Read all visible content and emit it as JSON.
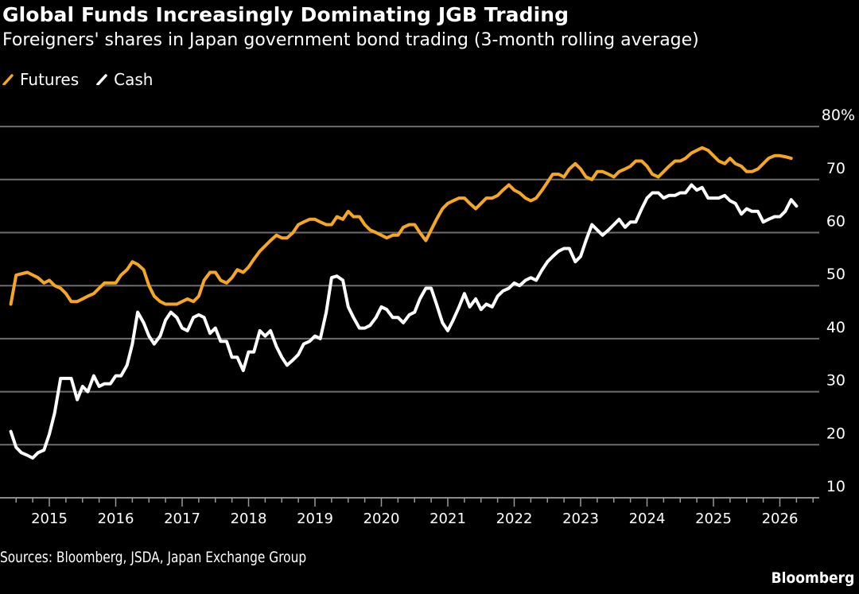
{
  "chart_data": {
    "type": "line",
    "title": "Global Funds Increasingly Dominating JGB Trading",
    "subtitle": "Foreigners' shares in Japan government bond trading (3-month rolling average)",
    "xlabel": "",
    "ylabel": "",
    "xlim": [
      2014.35,
      2026.75
    ],
    "ylim": [
      10,
      80
    ],
    "y_ticks": [
      "10",
      "20",
      "30",
      "40",
      "50",
      "60",
      "70",
      "80%"
    ],
    "y_tick_values": [
      10,
      20,
      30,
      40,
      50,
      60,
      70,
      80
    ],
    "x_ticks": [
      "2015",
      "2016",
      "2017",
      "2018",
      "2019",
      "2020",
      "2021",
      "2022",
      "2023",
      "2024",
      "2025",
      "2026"
    ],
    "x_tick_values": [
      2015,
      2016,
      2017,
      2018,
      2019,
      2020,
      2021,
      2022,
      2023,
      2024,
      2025,
      2026
    ],
    "grid": true,
    "y_axis_side": "right",
    "legend_placement": "top-left",
    "series": [
      {
        "name": "Futures",
        "color": "#f5a623",
        "points": [
          [
            2014.42,
            46.5
          ],
          [
            2014.5,
            52
          ],
          [
            2014.67,
            52.5
          ],
          [
            2014.83,
            51.5
          ],
          [
            2014.92,
            50.5
          ],
          [
            2015.0,
            51
          ],
          [
            2015.08,
            50
          ],
          [
            2015.17,
            49.5
          ],
          [
            2015.25,
            48.5
          ],
          [
            2015.33,
            47
          ],
          [
            2015.42,
            47
          ],
          [
            2015.5,
            47.5
          ],
          [
            2015.58,
            48
          ],
          [
            2015.67,
            48.5
          ],
          [
            2015.75,
            49.5
          ],
          [
            2015.83,
            50.5
          ],
          [
            2015.92,
            50.5
          ],
          [
            2016.0,
            50.5
          ],
          [
            2016.08,
            52
          ],
          [
            2016.17,
            53
          ],
          [
            2016.25,
            54.5
          ],
          [
            2016.33,
            54
          ],
          [
            2016.42,
            53
          ],
          [
            2016.5,
            50
          ],
          [
            2016.58,
            48
          ],
          [
            2016.67,
            47
          ],
          [
            2016.75,
            46.5
          ],
          [
            2016.83,
            46.5
          ],
          [
            2016.92,
            46.5
          ],
          [
            2017.0,
            47
          ],
          [
            2017.08,
            47.5
          ],
          [
            2017.17,
            47
          ],
          [
            2017.25,
            48
          ],
          [
            2017.33,
            51
          ],
          [
            2017.42,
            52.5
          ],
          [
            2017.5,
            52.5
          ],
          [
            2017.58,
            51
          ],
          [
            2017.67,
            50.5
          ],
          [
            2017.75,
            51.5
          ],
          [
            2017.83,
            53
          ],
          [
            2017.92,
            52.5
          ],
          [
            2018.0,
            53.5
          ],
          [
            2018.08,
            55
          ],
          [
            2018.17,
            56.5
          ],
          [
            2018.25,
            57.5
          ],
          [
            2018.33,
            58.5
          ],
          [
            2018.42,
            59.5
          ],
          [
            2018.5,
            59
          ],
          [
            2018.58,
            59
          ],
          [
            2018.67,
            60
          ],
          [
            2018.75,
            61.5
          ],
          [
            2018.83,
            62
          ],
          [
            2018.92,
            62.5
          ],
          [
            2019.0,
            62.5
          ],
          [
            2019.08,
            62
          ],
          [
            2019.17,
            61.5
          ],
          [
            2019.25,
            61.5
          ],
          [
            2019.33,
            63
          ],
          [
            2019.42,
            62.5
          ],
          [
            2019.5,
            64
          ],
          [
            2019.58,
            63
          ],
          [
            2019.67,
            63
          ],
          [
            2019.75,
            61.5
          ],
          [
            2019.83,
            60.5
          ],
          [
            2019.92,
            60
          ],
          [
            2020.0,
            59.5
          ],
          [
            2020.08,
            59
          ],
          [
            2020.17,
            59.5
          ],
          [
            2020.25,
            59.5
          ],
          [
            2020.33,
            61
          ],
          [
            2020.42,
            61.5
          ],
          [
            2020.5,
            61.5
          ],
          [
            2020.58,
            60
          ],
          [
            2020.67,
            58.5
          ],
          [
            2020.75,
            60.5
          ],
          [
            2020.83,
            62.5
          ],
          [
            2020.92,
            64.5
          ],
          [
            2021.0,
            65.5
          ],
          [
            2021.08,
            66
          ],
          [
            2021.17,
            66.5
          ],
          [
            2021.25,
            66.5
          ],
          [
            2021.33,
            65.5
          ],
          [
            2021.42,
            64.5
          ],
          [
            2021.5,
            65.5
          ],
          [
            2021.58,
            66.5
          ],
          [
            2021.67,
            66.5
          ],
          [
            2021.75,
            67
          ],
          [
            2021.83,
            68
          ],
          [
            2021.92,
            69
          ],
          [
            2022.0,
            68
          ],
          [
            2022.08,
            67.5
          ],
          [
            2022.17,
            66.5
          ],
          [
            2022.25,
            66
          ],
          [
            2022.33,
            66.5
          ],
          [
            2022.42,
            68
          ],
          [
            2022.5,
            69.5
          ],
          [
            2022.58,
            71
          ],
          [
            2022.67,
            71
          ],
          [
            2022.75,
            70.5
          ],
          [
            2022.83,
            72
          ],
          [
            2022.92,
            73
          ],
          [
            2023.0,
            72
          ],
          [
            2023.08,
            70.5
          ],
          [
            2023.17,
            70
          ],
          [
            2023.25,
            71.5
          ],
          [
            2023.33,
            71.5
          ],
          [
            2023.42,
            71
          ],
          [
            2023.5,
            70.5
          ],
          [
            2023.58,
            71.5
          ],
          [
            2023.67,
            72
          ],
          [
            2023.75,
            72.5
          ],
          [
            2023.83,
            73.5
          ],
          [
            2023.92,
            73.5
          ],
          [
            2024.0,
            72.5
          ],
          [
            2024.08,
            71
          ],
          [
            2024.17,
            70.5
          ],
          [
            2024.25,
            71.5
          ],
          [
            2024.33,
            72.5
          ],
          [
            2024.42,
            73.5
          ],
          [
            2024.5,
            73.5
          ],
          [
            2024.58,
            74
          ],
          [
            2024.67,
            75
          ],
          [
            2024.75,
            75.5
          ],
          [
            2024.83,
            76
          ],
          [
            2024.92,
            75.5
          ],
          [
            2025.0,
            74.5
          ],
          [
            2025.08,
            73.5
          ],
          [
            2025.17,
            73
          ],
          [
            2025.25,
            74
          ],
          [
            2025.33,
            73
          ],
          [
            2025.42,
            72.5
          ],
          [
            2025.5,
            71.5
          ],
          [
            2025.58,
            71.5
          ],
          [
            2025.67,
            72
          ],
          [
            2025.75,
            73
          ],
          [
            2025.83,
            74
          ],
          [
            2025.92,
            74.5
          ],
          [
            2026.0,
            74.5
          ],
          [
            2026.08,
            74.3
          ],
          [
            2026.17,
            74
          ]
        ]
      },
      {
        "name": "Cash",
        "color": "#ffffff",
        "points": [
          [
            2014.42,
            22.5
          ],
          [
            2014.5,
            19.5
          ],
          [
            2014.58,
            18.5
          ],
          [
            2014.67,
            18
          ],
          [
            2014.75,
            17.5
          ],
          [
            2014.83,
            18.5
          ],
          [
            2014.92,
            19
          ],
          [
            2015.0,
            22
          ],
          [
            2015.08,
            26
          ],
          [
            2015.17,
            32.5
          ],
          [
            2015.25,
            32.5
          ],
          [
            2015.33,
            32.5
          ],
          [
            2015.42,
            28.5
          ],
          [
            2015.5,
            31
          ],
          [
            2015.58,
            30
          ],
          [
            2015.67,
            33
          ],
          [
            2015.75,
            31
          ],
          [
            2015.83,
            31.5
          ],
          [
            2015.92,
            31.5
          ],
          [
            2016.0,
            33
          ],
          [
            2016.08,
            33
          ],
          [
            2016.17,
            35
          ],
          [
            2016.25,
            39
          ],
          [
            2016.33,
            45
          ],
          [
            2016.42,
            43
          ],
          [
            2016.5,
            40.5
          ],
          [
            2016.58,
            39
          ],
          [
            2016.67,
            40.5
          ],
          [
            2016.75,
            43.5
          ],
          [
            2016.83,
            45
          ],
          [
            2016.92,
            44
          ],
          [
            2017.0,
            42
          ],
          [
            2017.08,
            41.5
          ],
          [
            2017.17,
            44
          ],
          [
            2017.25,
            44.5
          ],
          [
            2017.33,
            44
          ],
          [
            2017.42,
            41
          ],
          [
            2017.5,
            42
          ],
          [
            2017.58,
            39.5
          ],
          [
            2017.67,
            39.5
          ],
          [
            2017.75,
            36.5
          ],
          [
            2017.83,
            36.5
          ],
          [
            2017.92,
            34
          ],
          [
            2018.0,
            37.5
          ],
          [
            2018.08,
            37.5
          ],
          [
            2018.17,
            41.5
          ],
          [
            2018.25,
            40.5
          ],
          [
            2018.33,
            41.5
          ],
          [
            2018.42,
            38.5
          ],
          [
            2018.5,
            36.5
          ],
          [
            2018.58,
            35
          ],
          [
            2018.67,
            36
          ],
          [
            2018.75,
            37
          ],
          [
            2018.83,
            39
          ],
          [
            2018.92,
            39.5
          ],
          [
            2019.0,
            40.5
          ],
          [
            2019.08,
            40
          ],
          [
            2019.17,
            45
          ],
          [
            2019.25,
            51.5
          ],
          [
            2019.33,
            51.8
          ],
          [
            2019.42,
            51
          ],
          [
            2019.5,
            46
          ],
          [
            2019.58,
            44
          ],
          [
            2019.67,
            42
          ],
          [
            2019.75,
            42
          ],
          [
            2019.83,
            42.5
          ],
          [
            2019.92,
            44
          ],
          [
            2020.0,
            46
          ],
          [
            2020.08,
            45.5
          ],
          [
            2020.17,
            44
          ],
          [
            2020.25,
            44
          ],
          [
            2020.33,
            43
          ],
          [
            2020.42,
            44.5
          ],
          [
            2020.5,
            45
          ],
          [
            2020.58,
            47.5
          ],
          [
            2020.67,
            49.5
          ],
          [
            2020.75,
            49.5
          ],
          [
            2020.83,
            46.5
          ],
          [
            2020.92,
            43
          ],
          [
            2021.0,
            41.5
          ],
          [
            2021.08,
            43.5
          ],
          [
            2021.17,
            46
          ],
          [
            2021.25,
            48.5
          ],
          [
            2021.33,
            46
          ],
          [
            2021.42,
            47.5
          ],
          [
            2021.5,
            45.5
          ],
          [
            2021.58,
            46.5
          ],
          [
            2021.67,
            46
          ],
          [
            2021.75,
            48
          ],
          [
            2021.83,
            49
          ],
          [
            2021.92,
            49.5
          ],
          [
            2022.0,
            50.5
          ],
          [
            2022.08,
            50
          ],
          [
            2022.17,
            51
          ],
          [
            2022.25,
            51.5
          ],
          [
            2022.33,
            51
          ],
          [
            2022.42,
            53
          ],
          [
            2022.5,
            54.5
          ],
          [
            2022.58,
            55.5
          ],
          [
            2022.67,
            56.5
          ],
          [
            2022.75,
            57
          ],
          [
            2022.83,
            57
          ],
          [
            2022.92,
            54.5
          ],
          [
            2023.0,
            55.5
          ],
          [
            2023.08,
            58.5
          ],
          [
            2023.17,
            61.5
          ],
          [
            2023.25,
            60.5
          ],
          [
            2023.33,
            59.5
          ],
          [
            2023.42,
            60.5
          ],
          [
            2023.5,
            61.5
          ],
          [
            2023.58,
            62.5
          ],
          [
            2023.67,
            61
          ],
          [
            2023.75,
            62
          ],
          [
            2023.83,
            62
          ],
          [
            2023.92,
            64.5
          ],
          [
            2024.0,
            66.5
          ],
          [
            2024.08,
            67.5
          ],
          [
            2024.17,
            67.5
          ],
          [
            2024.25,
            66.5
          ],
          [
            2024.33,
            67
          ],
          [
            2024.42,
            67
          ],
          [
            2024.5,
            67.5
          ],
          [
            2024.58,
            67.5
          ],
          [
            2024.67,
            69
          ],
          [
            2024.75,
            68
          ],
          [
            2024.83,
            68.5
          ],
          [
            2024.92,
            66.5
          ],
          [
            2025.0,
            66.5
          ],
          [
            2025.08,
            66.5
          ],
          [
            2025.17,
            67
          ],
          [
            2025.25,
            66
          ],
          [
            2025.33,
            65.5
          ],
          [
            2025.42,
            63.5
          ],
          [
            2025.5,
            64.5
          ],
          [
            2025.58,
            64
          ],
          [
            2025.67,
            64
          ],
          [
            2025.75,
            62
          ],
          [
            2025.83,
            62.5
          ],
          [
            2025.92,
            63
          ],
          [
            2026.0,
            63
          ],
          [
            2026.08,
            64
          ],
          [
            2026.17,
            66.2
          ],
          [
            2026.25,
            65
          ]
        ]
      }
    ]
  },
  "header": {
    "title": "Global Funds Increasingly Dominating JGB Trading",
    "subtitle": "Foreigners' shares in Japan government bond trading (3-month rolling average)"
  },
  "legend": {
    "items": [
      {
        "label": "Futures",
        "color": "#f5a623",
        "icon": "diagonal-line-swatch"
      },
      {
        "label": "Cash",
        "color": "#ffffff",
        "icon": "diagonal-line-swatch"
      }
    ]
  },
  "footer": {
    "source": "Sources: Bloomberg, JSDA, Japan Exchange Group",
    "brand": "Bloomberg"
  }
}
